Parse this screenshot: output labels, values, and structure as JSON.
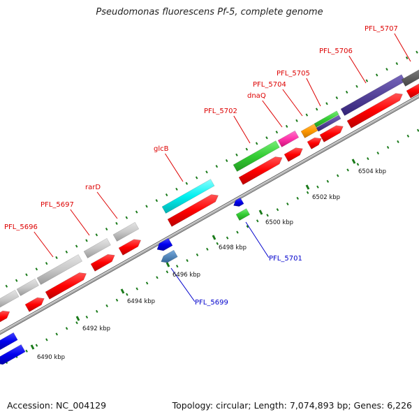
{
  "title": "Pseudomonas fluorescens Pf-5, complete genome",
  "footer": {
    "accession": "Accession: NC_004129",
    "stats": "Topology: circular; Length: 7,074,893 bp; Genes: 6,226"
  },
  "colors": {
    "background": "#ffffff",
    "backbone": "#999999",
    "tick": "#1a7a1a",
    "cds_forward": "#ff0000",
    "cds_reverse": "#0000ee",
    "label_top": "#dd0000",
    "label_bottom": "#0000cc"
  },
  "scale_labels": [
    "6490 kbp",
    "6492 kbp",
    "6494 kbp",
    "6496 kbp",
    "6498 kbp",
    "6500 kbp",
    "6502 kbp",
    "6504 kbp"
  ],
  "labels_top": [
    "PFL_5696",
    "PFL_5697",
    "rarD",
    "glcB",
    "PFL_5702",
    "dnaQ",
    "PFL_5704",
    "PFL_5705",
    "PFL_5706",
    "PFL_5707"
  ],
  "labels_bottom": [
    "PFL_5699",
    "PFL_5701"
  ],
  "legend_colors": {
    "cog_gray": "#c8c8c8",
    "cog_cyan": "#00f0f0",
    "cog_green": "#33cc33",
    "cog_magenta": "#ff33aa",
    "cog_orange": "#ff9900",
    "cog_purple": "#554499",
    "cog_darkgray": "#666666",
    "cog_steelblue": "#5588bb"
  }
}
